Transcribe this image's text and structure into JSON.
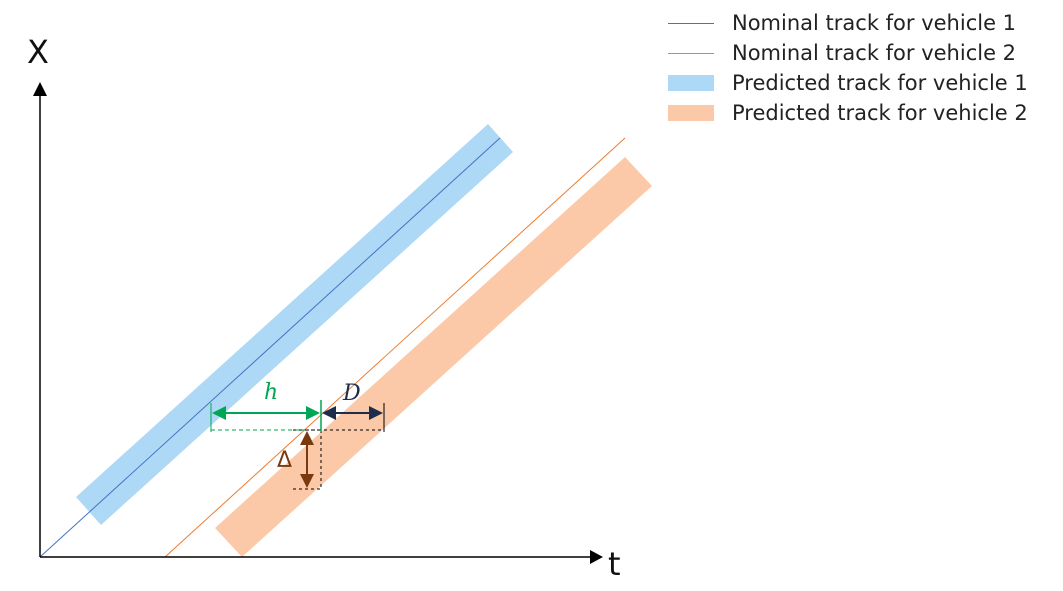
{
  "axes": {
    "x_label": "t",
    "y_label": "X"
  },
  "legend": [
    {
      "label": "Nominal track for vehicle 1",
      "kind": "line",
      "color": "#4472c4"
    },
    {
      "label": "Nominal track for vehicle 2",
      "kind": "line",
      "color": "#ed7d31"
    },
    {
      "label": "Predicted track for vehicle 1",
      "kind": "band",
      "color": "#add9f7"
    },
    {
      "label": "Predicted track for vehicle 2",
      "kind": "band",
      "color": "#fcc9a8"
    }
  ],
  "annotations": {
    "h": {
      "label": "h",
      "color": "#00a651"
    },
    "D": {
      "label": "D",
      "color": "#1f2d4a"
    },
    "delta": {
      "label": "Δ",
      "color": "#7a3a0e"
    }
  }
}
